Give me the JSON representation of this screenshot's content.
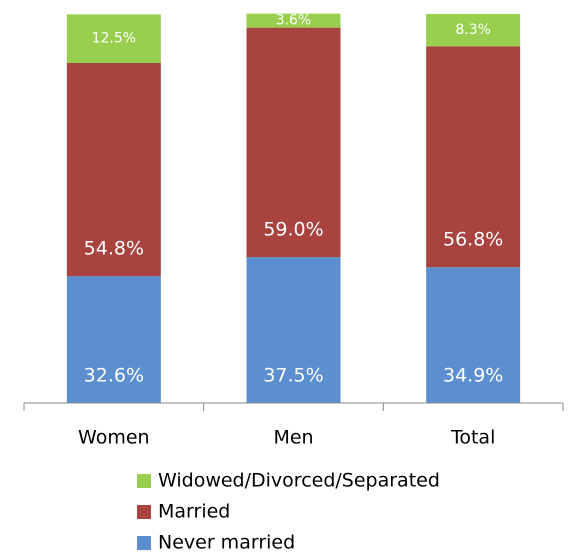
{
  "chart_data": {
    "type": "stacked_bar",
    "categories": [
      "Women",
      "Men",
      "Total"
    ],
    "series": [
      {
        "name": "Never married",
        "color": "#5b8fcf",
        "values": [
          32.6,
          37.5,
          34.9
        ],
        "value_labels": [
          "32.6%",
          "37.5%",
          "34.9%"
        ]
      },
      {
        "name": "Married",
        "color": "#a84340",
        "values": [
          54.8,
          59.0,
          56.8
        ],
        "value_labels": [
          "54.8%",
          "59.0%",
          "56.8%"
        ]
      },
      {
        "name": "Widowed/Divorced/Separated",
        "color": "#98cf4f",
        "values": [
          12.5,
          3.6,
          8.3
        ],
        "value_labels": [
          "12.5%",
          "3.6%",
          "8.3%"
        ]
      }
    ],
    "ylim": [
      0,
      100
    ]
  }
}
